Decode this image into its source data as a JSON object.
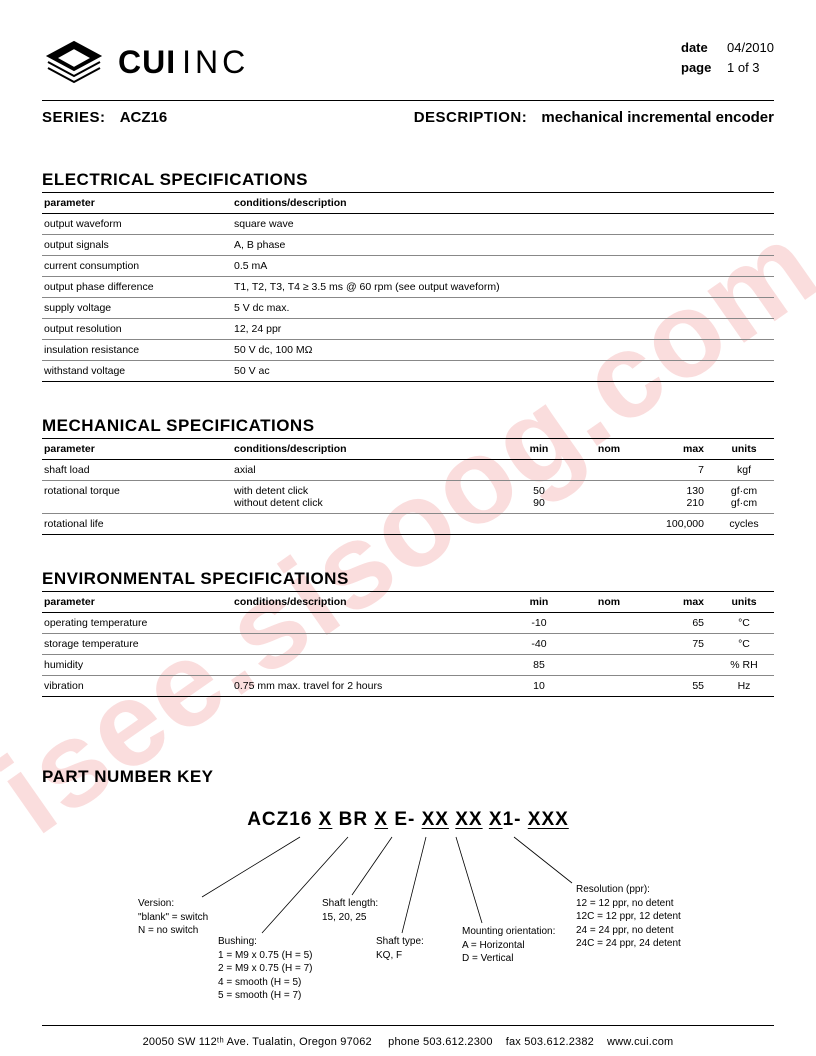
{
  "watermark_text": "isee.sisoog.com",
  "watermark_color": "#f4b5b5",
  "header": {
    "company": "CUI",
    "company_suffix": "INC",
    "date_label": "date",
    "date_value": "04/2010",
    "page_label": "page",
    "page_value": "1 of 3"
  },
  "title": {
    "series_label": "SERIES:",
    "series_value": "ACZ16",
    "desc_label": "DESCRIPTION:",
    "desc_value": "mechanical incremental encoder"
  },
  "sections": {
    "electrical": {
      "title": "ELECTRICAL SPECIFICATIONS",
      "headers": [
        "parameter",
        "conditions/description"
      ],
      "rows": [
        [
          "output waveform",
          "square wave"
        ],
        [
          "output signals",
          "A, B phase"
        ],
        [
          "current consumption",
          "0.5 mA"
        ],
        [
          "output phase difference",
          "T1, T2, T3, T4 ≥ 3.5 ms @ 60 rpm (see output waveform)"
        ],
        [
          "supply voltage",
          "5 V dc max."
        ],
        [
          "output resolution",
          "12, 24 ppr"
        ],
        [
          "insulation resistance",
          "50 V dc, 100 MΩ"
        ],
        [
          "withstand voltage",
          "50 V ac"
        ]
      ]
    },
    "mechanical": {
      "title": "MECHANICAL SPECIFICATIONS",
      "headers": [
        "parameter",
        "conditions/description",
        "min",
        "nom",
        "max",
        "units"
      ],
      "rows": [
        {
          "param": "shaft load",
          "cond": "axial",
          "min": "",
          "nom": "",
          "max": "7",
          "units": "kgf"
        },
        {
          "param": "rotational torque",
          "cond": "with detent click\nwithout detent click",
          "min": "50\n90",
          "nom": "",
          "max": "130\n210",
          "units": "gf·cm\ngf·cm"
        },
        {
          "param": "rotational life",
          "cond": "",
          "min": "",
          "nom": "",
          "max": "100,000",
          "units": "cycles"
        }
      ]
    },
    "environmental": {
      "title": "ENVIRONMENTAL SPECIFICATIONS",
      "headers": [
        "parameter",
        "conditions/description",
        "min",
        "nom",
        "max",
        "units"
      ],
      "rows": [
        {
          "param": "operating temperature",
          "cond": "",
          "min": "-10",
          "nom": "",
          "max": "65",
          "units": "°C"
        },
        {
          "param": "storage temperature",
          "cond": "",
          "min": "-40",
          "nom": "",
          "max": "75",
          "units": "°C"
        },
        {
          "param": "humidity",
          "cond": "",
          "min": "85",
          "nom": "",
          "max": "",
          "units": "% RH"
        },
        {
          "param": "vibration",
          "cond": "0.75 mm max. travel for 2 hours",
          "min": "10",
          "nom": "",
          "max": "55",
          "units": "Hz"
        }
      ]
    }
  },
  "part_number_key": {
    "title": "PART NUMBER KEY",
    "code_parts": [
      "ACZ16 ",
      "X",
      " BR ",
      "X",
      " E- ",
      "XX",
      " ",
      "XX",
      " ",
      "X",
      "1- ",
      "XXX"
    ],
    "labels": {
      "version": {
        "head": "Version:",
        "body": "\"blank\" = switch\nN = no switch"
      },
      "bushing": {
        "head": "Bushing:",
        "body": "1 = M9 x 0.75 (H = 5)\n2 = M9 x 0.75 (H = 7)\n4 = smooth (H = 5)\n5 = smooth (H = 7)"
      },
      "shaft_length": {
        "head": "Shaft length:",
        "body": "15, 20, 25"
      },
      "shaft_type": {
        "head": "Shaft type:",
        "body": "KQ, F"
      },
      "mounting": {
        "head": "Mounting orientation:",
        "body": "A = Horizontal\nD = Vertical"
      },
      "resolution": {
        "head": "Resolution (ppr):",
        "body": "12 = 12 ppr, no detent\n12C = 12 ppr, 12 detent\n24 = 24 ppr, no detent\n24C = 24 ppr, 24 detent"
      }
    }
  },
  "footer": {
    "address": "20050 SW 112ᵗʰ Ave. Tualatin, Oregon 97062",
    "phone_label": "phone",
    "phone": "503.612.2300",
    "fax_label": "fax",
    "fax": "503.612.2382",
    "url": "www.cui.com"
  }
}
